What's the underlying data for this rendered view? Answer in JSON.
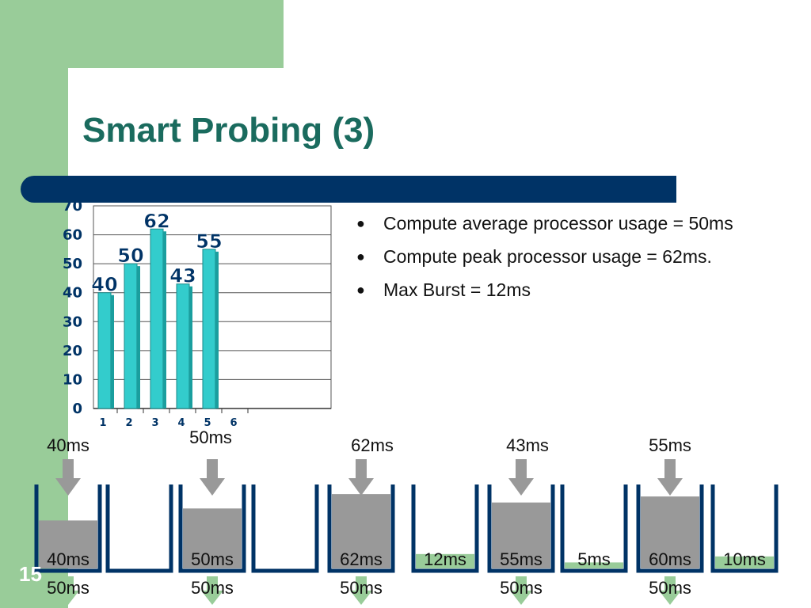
{
  "slide": {
    "title": "Smart Probing (3)",
    "number": "15",
    "colors": {
      "band": "#99cc99",
      "title": "#1a6b5e",
      "rule": "#003366",
      "bar": "#33cccc",
      "fill_gray": "#999999",
      "fill_green": "#99cc99",
      "bucket": "#003366",
      "arrow_gray": "#999999",
      "arrow_green": "#99cc99"
    }
  },
  "bullets": [
    "Compute average processor usage = 50ms",
    "Compute peak processor usage = 62ms.",
    "Max Burst = 12ms"
  ],
  "chart_data": {
    "type": "bar",
    "categories": [
      "1",
      "2",
      "3",
      "4",
      "5",
      "6"
    ],
    "values": [
      40,
      50,
      62,
      43,
      55,
      null
    ],
    "data_labels": [
      "40",
      "50",
      "62",
      "43",
      "55",
      ""
    ],
    "yticks": [
      "0",
      "10",
      "20",
      "30",
      "40",
      "50",
      "60",
      "70"
    ],
    "ylim": [
      0,
      70
    ],
    "grid": true,
    "title": "",
    "xlabel": "",
    "ylabel": ""
  },
  "diagram": {
    "input_labels": [
      "40ms",
      "50ms",
      "62ms",
      "43ms",
      "55ms"
    ],
    "buckets": [
      {
        "kind": "gray",
        "fill": 40,
        "label": "40ms",
        "bottom": "50ms"
      },
      {
        "kind": "empty",
        "fill": 0,
        "label": "",
        "bottom": ""
      },
      {
        "kind": "gray",
        "fill": 50,
        "label": "50ms",
        "bottom": "50ms"
      },
      {
        "kind": "empty",
        "fill": 0,
        "label": "",
        "bottom": ""
      },
      {
        "kind": "gray",
        "fill": 62,
        "label": "62ms",
        "bottom": "50ms"
      },
      {
        "kind": "green",
        "fill": 12,
        "label": "12ms",
        "bottom": ""
      },
      {
        "kind": "gray",
        "fill": 55,
        "label": "55ms",
        "bottom": "50ms"
      },
      {
        "kind": "green",
        "fill": 5,
        "label": "5ms",
        "bottom": ""
      },
      {
        "kind": "gray",
        "fill": 60,
        "label": "60ms",
        "bottom": "50ms"
      },
      {
        "kind": "green",
        "fill": 10,
        "label": "10ms",
        "bottom": ""
      }
    ]
  }
}
